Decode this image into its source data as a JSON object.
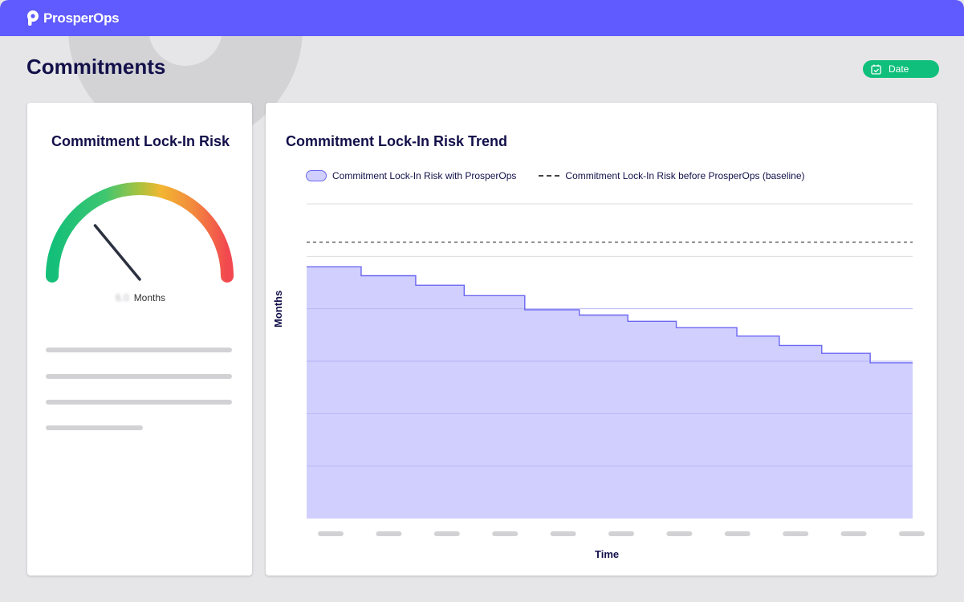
{
  "app": {
    "brand": "ProsperOps",
    "logo_icon": "prosperops-logo-icon"
  },
  "header": {
    "title": "Commitments"
  },
  "toolbar": {
    "date_label": "Date",
    "date_icon": "calendar-check-icon"
  },
  "colors": {
    "brand": "#5f5bfe",
    "accent_green": "#10bf7c",
    "series_fill": "#d0cffd",
    "series_line": "#6b66f2",
    "title": "#13104a"
  },
  "gauge_card": {
    "title": "Commitment Lock-In Risk",
    "value_text": "6.0",
    "unit": "Months",
    "needle_fraction": 0.28
  },
  "trend_card": {
    "title": "Commitment Lock-In Risk Trend",
    "legend": [
      {
        "label": "Commitment Lock-In Risk with ProsperOps",
        "style": "filled"
      },
      {
        "label": "Commitment Lock-In Risk before ProsperOps (baseline)",
        "style": "dashed"
      }
    ],
    "ylabel": "Months",
    "xlabel": "Time"
  },
  "chart_data": {
    "type": "area",
    "title": "Commitment Lock-In Risk Trend",
    "xlabel": "Time",
    "ylabel": "Months",
    "ylim": [
      0,
      6
    ],
    "grid": true,
    "legend_placement": "top-left",
    "x_tick_count": 11,
    "series": [
      {
        "name": "Commitment Lock-In Risk with ProsperOps",
        "style": "step-area",
        "x": [
          0,
          0.09,
          0.18,
          0.26,
          0.36,
          0.45,
          0.53,
          0.61,
          0.71,
          0.78,
          0.85,
          0.93,
          1.0
        ],
        "values": [
          4.8,
          4.63,
          4.45,
          4.25,
          3.98,
          3.88,
          3.76,
          3.64,
          3.48,
          3.3,
          3.15,
          2.97,
          2.97
        ]
      },
      {
        "name": "Commitment Lock-In Risk before ProsperOps (baseline)",
        "style": "dashed",
        "values": [
          5.27
        ]
      }
    ]
  }
}
